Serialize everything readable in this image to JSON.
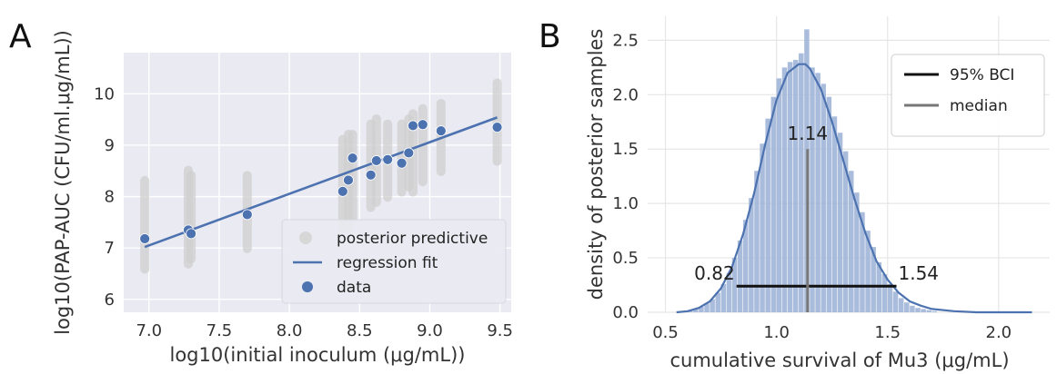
{
  "chart_data": [
    {
      "panel": "A",
      "type": "scatter",
      "xlabel": "log10(initial inoculum (μg/mL))",
      "ylabel": "log10(PAP-AUC (CFU/ml.μg/mL))",
      "xlim": [
        6.82,
        9.58
      ],
      "ylim": [
        5.75,
        10.8
      ],
      "xticks": [
        "7.0",
        "7.5",
        "8.0",
        "8.5",
        "9.0",
        "9.5"
      ],
      "yticks": [
        "6",
        "7",
        "8",
        "9",
        "10"
      ],
      "xtick_values": [
        7.0,
        7.5,
        8.0,
        8.5,
        9.0,
        9.5
      ],
      "ytick_values": [
        6,
        7,
        8,
        9,
        10
      ],
      "grid": true,
      "background": "#eaeaf2",
      "legend": {
        "placement": "lower-right",
        "entries": [
          "posterior predictive",
          "regression fit",
          "data"
        ]
      },
      "series": [
        {
          "name": "posterior predictive",
          "kind": "interval",
          "color": "#cfcfcf",
          "intervals": [
            {
              "x": 6.97,
              "low": 6.5,
              "high": 8.4
            },
            {
              "x": 7.28,
              "low": 6.6,
              "high": 8.6
            },
            {
              "x": 7.3,
              "low": 6.7,
              "high": 8.5
            },
            {
              "x": 7.7,
              "low": 6.9,
              "high": 8.5
            },
            {
              "x": 8.38,
              "low": 7.3,
              "high": 9.2
            },
            {
              "x": 8.42,
              "low": 7.3,
              "high": 9.3
            },
            {
              "x": 8.45,
              "low": 7.5,
              "high": 9.3
            },
            {
              "x": 8.58,
              "low": 7.7,
              "high": 9.5
            },
            {
              "x": 8.62,
              "low": 7.8,
              "high": 9.6
            },
            {
              "x": 8.7,
              "low": 7.9,
              "high": 9.5
            },
            {
              "x": 8.8,
              "low": 8.0,
              "high": 9.5
            },
            {
              "x": 8.85,
              "low": 8.1,
              "high": 9.6
            },
            {
              "x": 8.88,
              "low": 8.0,
              "high": 9.7
            },
            {
              "x": 8.95,
              "low": 8.2,
              "high": 9.8
            },
            {
              "x": 9.08,
              "low": 8.4,
              "high": 9.9
            },
            {
              "x": 9.48,
              "low": 8.6,
              "high": 10.3
            }
          ]
        },
        {
          "name": "regression fit",
          "kind": "line",
          "color": "#4c72b0",
          "x": [
            6.97,
            9.48
          ],
          "y": [
            7.02,
            9.54
          ]
        },
        {
          "name": "data",
          "kind": "scatter",
          "color": "#4c72b0",
          "x": [
            6.97,
            7.28,
            7.3,
            7.7,
            8.38,
            8.42,
            8.45,
            8.58,
            8.62,
            8.7,
            8.8,
            8.85,
            8.88,
            8.95,
            9.08,
            9.48
          ],
          "y": [
            7.18,
            7.35,
            7.28,
            7.65,
            8.1,
            8.32,
            8.75,
            8.42,
            8.7,
            8.72,
            8.65,
            8.85,
            9.38,
            9.4,
            9.28,
            9.35
          ]
        }
      ]
    },
    {
      "panel": "B",
      "type": "bar",
      "subtype": "histogram with density curve",
      "xlabel": "cumulative survival of Mu3 (μg/mL)",
      "ylabel": "density of posterior samples",
      "xlim": [
        0.42,
        2.23
      ],
      "ylim": [
        0,
        2.72
      ],
      "xticks": [
        "0.5",
        "1.0",
        "1.5",
        "2.0"
      ],
      "yticks": [
        "0.0",
        "0.5",
        "1.0",
        "1.5",
        "2.0",
        "2.5"
      ],
      "xtick_values": [
        0.5,
        1.0,
        1.5,
        2.0
      ],
      "ytick_values": [
        0.0,
        0.5,
        1.0,
        1.5,
        2.0,
        2.5
      ],
      "grid": true,
      "bar_color": "#a1b5d8",
      "curve_color": "#4c72b0",
      "histogram": {
        "bin_width": 0.025,
        "bin_starts": [
          0.6,
          0.625,
          0.65,
          0.675,
          0.7,
          0.725,
          0.75,
          0.775,
          0.8,
          0.825,
          0.85,
          0.875,
          0.9,
          0.925,
          0.95,
          0.975,
          1.0,
          1.025,
          1.05,
          1.075,
          1.1,
          1.125,
          1.15,
          1.175,
          1.2,
          1.225,
          1.25,
          1.275,
          1.3,
          1.325,
          1.35,
          1.375,
          1.4,
          1.425,
          1.45,
          1.475,
          1.5,
          1.525,
          1.55,
          1.575,
          1.6,
          1.625,
          1.65,
          1.675,
          1.7
        ],
        "densities": [
          0.02,
          0.03,
          0.05,
          0.08,
          0.12,
          0.18,
          0.26,
          0.36,
          0.5,
          0.66,
          0.85,
          1.05,
          1.3,
          1.55,
          1.78,
          1.98,
          2.15,
          2.25,
          2.3,
          2.32,
          2.38,
          2.6,
          2.25,
          2.2,
          2.1,
          1.98,
          1.8,
          1.65,
          1.48,
          1.3,
          1.1,
          0.92,
          0.75,
          0.6,
          0.46,
          0.35,
          0.26,
          0.19,
          0.13,
          0.09,
          0.06,
          0.04,
          0.03,
          0.02,
          0.01
        ]
      },
      "density_curve": {
        "x": [
          0.55,
          0.6,
          0.65,
          0.7,
          0.75,
          0.8,
          0.85,
          0.9,
          0.95,
          1.0,
          1.05,
          1.1,
          1.13,
          1.15,
          1.2,
          1.25,
          1.3,
          1.35,
          1.4,
          1.45,
          1.5,
          1.55,
          1.6,
          1.65,
          1.7,
          1.8,
          1.9,
          2.0,
          2.1,
          2.15
        ],
        "y": [
          0.0,
          0.01,
          0.04,
          0.1,
          0.22,
          0.42,
          0.72,
          1.1,
          1.55,
          1.95,
          2.2,
          2.28,
          2.28,
          2.24,
          2.05,
          1.75,
          1.4,
          1.05,
          0.73,
          0.47,
          0.3,
          0.18,
          0.1,
          0.06,
          0.03,
          0.01,
          0.0,
          0.0,
          0.0,
          0.0
        ]
      },
      "bci": {
        "low": 0.82,
        "high": 1.54,
        "low_label": "0.82",
        "high_label": "1.54",
        "color": "#111111"
      },
      "median": {
        "value": 1.14,
        "label": "1.14",
        "height": 1.5,
        "color": "#777777"
      },
      "legend": {
        "placement": "top-right",
        "entries": [
          "95% BCI",
          "median"
        ]
      }
    }
  ],
  "panel_letters": [
    "A",
    "B"
  ]
}
